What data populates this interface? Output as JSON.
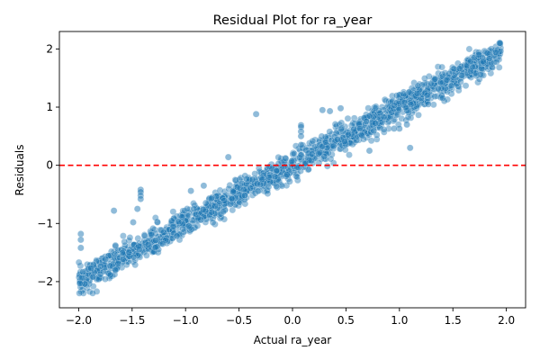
{
  "chart_data": {
    "type": "scatter",
    "title": "Residual Plot for ra_year",
    "xlabel": "Actual ra_year",
    "ylabel": "Residuals",
    "xlim": [
      -2.18,
      2.18
    ],
    "ylim": [
      -2.45,
      2.3
    ],
    "xticks": [
      -2.0,
      -1.5,
      -1.0,
      -0.5,
      0.0,
      0.5,
      1.0,
      1.5,
      2.0
    ],
    "xtick_labels": [
      "−2.0",
      "−1.5",
      "−1.0",
      "−0.5",
      "0.0",
      "0.5",
      "1.0",
      "1.5",
      "2.0"
    ],
    "yticks": [
      -2,
      -1,
      0,
      1,
      2
    ],
    "ytick_labels": [
      "−2",
      "−1",
      "0",
      "1",
      "2"
    ],
    "grid": false,
    "legend": "none",
    "reference_line": {
      "y": 0,
      "color": "#ff0000",
      "style": "dashed"
    },
    "marker_color": "#1f77b4",
    "trend": {
      "x_range": [
        -2.0,
        1.95
      ],
      "slope": 1.0,
      "intercept": 0.0,
      "spread": 0.12,
      "approx_count": 1600
    },
    "series": [
      {
        "x": [
          -0.34,
          0.08,
          0.08,
          0.08,
          0.08,
          0.08,
          0.45,
          0.28,
          0.35,
          0.72,
          1.1,
          1.0,
          1.27,
          -1.42,
          -1.42,
          -1.42,
          -1.42,
          -1.45,
          -1.49,
          -1.67,
          -1.98,
          -1.98,
          -1.98,
          -0.95,
          -0.83,
          -0.6,
          1.07,
          0.72,
          0.95
        ],
        "y": [
          0.88,
          0.69,
          0.66,
          0.58,
          0.5,
          0.35,
          0.98,
          0.95,
          0.93,
          0.25,
          0.3,
          0.63,
          1.05,
          -0.42,
          -0.46,
          -0.52,
          -0.58,
          -0.75,
          -0.98,
          -0.78,
          -1.18,
          -1.28,
          -1.42,
          -0.44,
          -0.35,
          0.14,
          0.7,
          0.85,
          0.63
        ]
      }
    ]
  }
}
